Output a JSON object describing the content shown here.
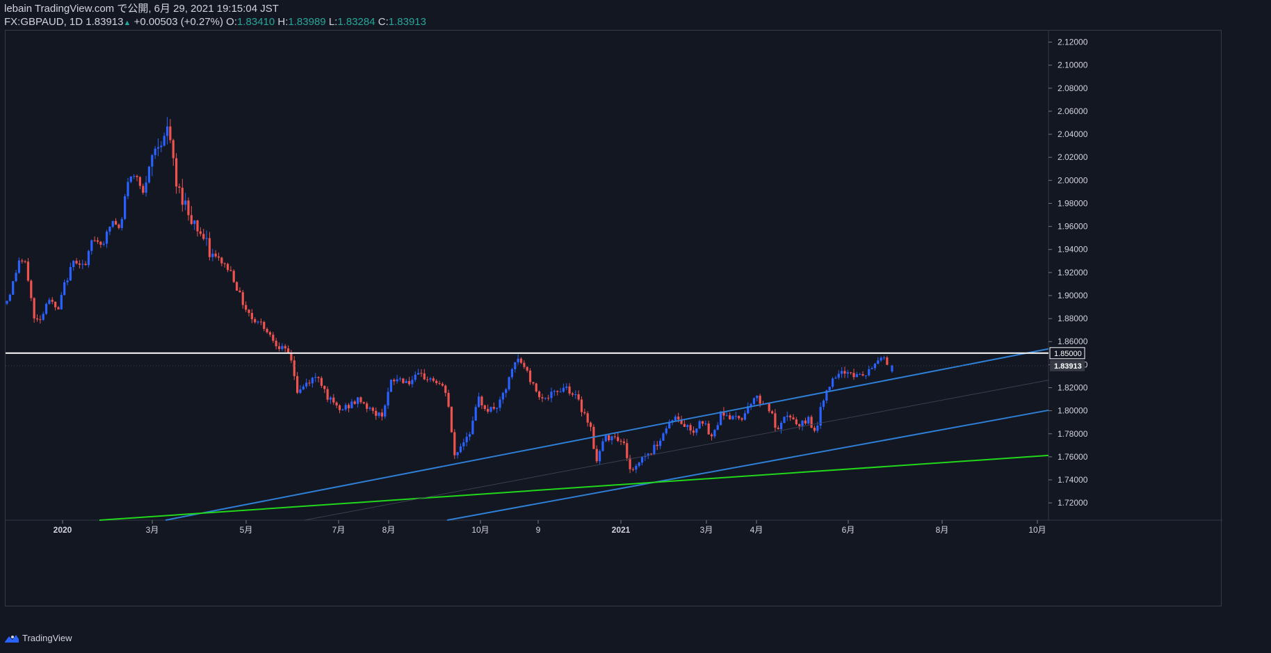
{
  "header": {
    "line1": "lebain TradingView.com で公開, 6月 29, 2021 19:15:04 JST",
    "symbol": "FX:GBPAUD, 1D",
    "last": "1.83913",
    "change": "+0.00503 (+0.27%)",
    "o_label": "O:",
    "o_value": "1.83410",
    "h_label": "H:",
    "h_value": "1.83989",
    "l_label": "L:",
    "l_value": "1.83284",
    "c_label": "C:",
    "c_value": "1.83913"
  },
  "footer": {
    "brand": "TradingView",
    "logo_icon": "tradingview-logo-icon"
  },
  "colors": {
    "bg": "#131722",
    "up": "#2962ff",
    "down": "#ef5350",
    "channel": "#2f7fd6",
    "support": "#22d81a",
    "level": "#ffffff",
    "axis_text": "#d1d4dc"
  },
  "chart_data": {
    "type": "candlestick",
    "ylim": [
      1.705,
      2.13
    ],
    "y_ticks": [
      "2.12000",
      "2.10000",
      "2.08000",
      "2.06000",
      "2.04000",
      "2.02000",
      "2.00000",
      "1.98000",
      "1.96000",
      "1.94000",
      "1.92000",
      "1.90000",
      "1.88000",
      "1.86000",
      "1.84000",
      "1.82000",
      "1.80000",
      "1.78000",
      "1.76000",
      "1.74000",
      "1.72000"
    ],
    "x_labels": [
      "2020",
      "3月",
      "5月",
      "7月",
      "8月",
      "10月",
      "9",
      "2021",
      "3月",
      "4月",
      "6月",
      "8月",
      "10月"
    ],
    "price_labels": [
      {
        "value": "1.85000",
        "price": 1.85,
        "style": "outline"
      },
      {
        "value": "1.83913",
        "price": 1.83913,
        "style": "filled"
      }
    ],
    "horizontal_level": 1.85,
    "ohlc_keypoints": [
      [
        0,
        1.893
      ],
      [
        8,
        1.905
      ],
      [
        20,
        1.932
      ],
      [
        30,
        1.925
      ],
      [
        42,
        1.876
      ],
      [
        55,
        1.885
      ],
      [
        60,
        1.9
      ],
      [
        75,
        1.885
      ],
      [
        85,
        1.91
      ],
      [
        100,
        1.932
      ],
      [
        115,
        1.925
      ],
      [
        125,
        1.95
      ],
      [
        140,
        1.945
      ],
      [
        150,
        1.96
      ],
      [
        155,
        1.965
      ],
      [
        165,
        1.955
      ],
      [
        175,
        2.0
      ],
      [
        190,
        2.005
      ],
      [
        200,
        1.985
      ],
      [
        210,
        2.02
      ],
      [
        220,
        2.032
      ],
      [
        230,
        2.04
      ],
      [
        235,
        2.045
      ],
      [
        245,
        1.995
      ],
      [
        255,
        1.985
      ],
      [
        265,
        1.97
      ],
      [
        280,
        1.955
      ],
      [
        295,
        1.935
      ],
      [
        310,
        1.93
      ],
      [
        325,
        1.92
      ],
      [
        340,
        1.895
      ],
      [
        355,
        1.88
      ],
      [
        370,
        1.875
      ],
      [
        385,
        1.862
      ],
      [
        400,
        1.852
      ],
      [
        410,
        1.848
      ],
      [
        420,
        1.815
      ],
      [
        435,
        1.825
      ],
      [
        450,
        1.83
      ],
      [
        465,
        1.81
      ],
      [
        480,
        1.8
      ],
      [
        495,
        1.805
      ],
      [
        510,
        1.81
      ],
      [
        525,
        1.8
      ],
      [
        540,
        1.795
      ],
      [
        555,
        1.825
      ],
      [
        565,
        1.828
      ],
      [
        580,
        1.825
      ],
      [
        595,
        1.83
      ],
      [
        610,
        1.828
      ],
      [
        620,
        1.825
      ],
      [
        635,
        1.815
      ],
      [
        645,
        1.76
      ],
      [
        660,
        1.775
      ],
      [
        670,
        1.785
      ],
      [
        680,
        1.81
      ],
      [
        695,
        1.8
      ],
      [
        710,
        1.805
      ],
      [
        720,
        1.82
      ],
      [
        735,
        1.845
      ],
      [
        745,
        1.84
      ],
      [
        760,
        1.82
      ],
      [
        775,
        1.81
      ],
      [
        790,
        1.815
      ],
      [
        805,
        1.822
      ],
      [
        820,
        1.812
      ],
      [
        830,
        1.8
      ],
      [
        840,
        1.79
      ],
      [
        850,
        1.755
      ],
      [
        860,
        1.775
      ],
      [
        875,
        1.78
      ],
      [
        890,
        1.77
      ],
      [
        900,
        1.745
      ],
      [
        915,
        1.76
      ],
      [
        930,
        1.765
      ],
      [
        945,
        1.78
      ],
      [
        960,
        1.795
      ],
      [
        975,
        1.788
      ],
      [
        990,
        1.782
      ],
      [
        1000,
        1.795
      ],
      [
        1015,
        1.775
      ],
      [
        1030,
        1.8
      ],
      [
        1045,
        1.793
      ],
      [
        1060,
        1.795
      ],
      [
        1075,
        1.812
      ],
      [
        1090,
        1.808
      ],
      [
        1100,
        1.8
      ],
      [
        1110,
        1.78
      ],
      [
        1125,
        1.798
      ],
      [
        1140,
        1.785
      ],
      [
        1155,
        1.793
      ],
      [
        1165,
        1.782
      ],
      [
        1180,
        1.82
      ],
      [
        1195,
        1.828
      ],
      [
        1210,
        1.835
      ],
      [
        1225,
        1.83
      ],
      [
        1240,
        1.832
      ],
      [
        1255,
        1.845
      ],
      [
        1265,
        1.848
      ],
      [
        1272,
        1.832
      ],
      [
        1280,
        1.839
      ]
    ],
    "trendlines": [
      {
        "name": "",
        "color": "#2f7fd6",
        "from": [
          230,
          1.705
        ],
        "to": [
          1750,
          1.883
        ]
      },
      {
        "name": "",
        "color": "#2f7fd6",
        "from": [
          635,
          1.705
        ],
        "to": [
          1750,
          1.828
        ]
      },
      {
        "name": "",
        "color": "#22d81a",
        "from": [
          135,
          1.705
        ],
        "to": [
          1750,
          1.7715
        ]
      },
      {
        "name": "",
        "color": "#3a4050",
        "from": [
          430,
          1.705
        ],
        "to": [
          1750,
          1.855
        ]
      }
    ]
  }
}
